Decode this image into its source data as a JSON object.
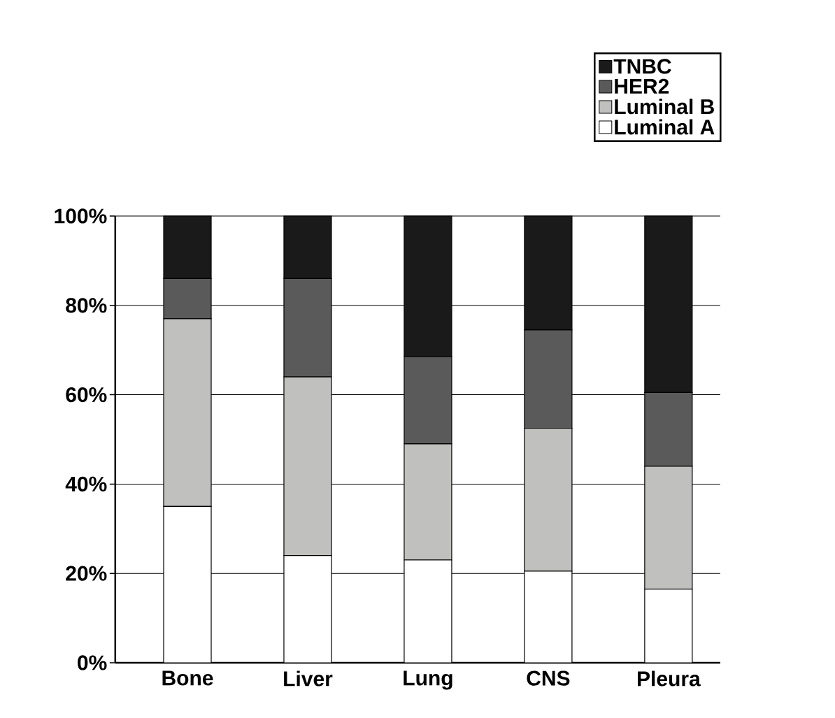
{
  "chart_data": {
    "type": "bar",
    "stacked": true,
    "categories": [
      "Bone",
      "Liver",
      "Lung",
      "CNS",
      "Pleura"
    ],
    "series": [
      {
        "name": "Luminal A",
        "color": "#ffffff",
        "values": [
          35,
          24,
          23,
          20.5,
          16.5
        ]
      },
      {
        "name": "Luminal B",
        "color": "#c0c1bf",
        "values": [
          42,
          40,
          26,
          32,
          27.5
        ]
      },
      {
        "name": "HER2",
        "color": "#5a5a5a",
        "values": [
          9,
          22,
          19.5,
          22,
          16.5
        ]
      },
      {
        "name": "TNBC",
        "color": "#1a1a1a",
        "values": [
          14,
          14,
          31.5,
          25.5,
          39.5
        ]
      }
    ],
    "ylim": [
      0,
      100
    ],
    "yticks": [
      {
        "value": 0,
        "label": "0%"
      },
      {
        "value": 20,
        "label": "20%"
      },
      {
        "value": 40,
        "label": "40%"
      },
      {
        "value": 60,
        "label": "60%"
      },
      {
        "value": 80,
        "label": "80%"
      },
      {
        "value": 100,
        "label": "100%"
      }
    ],
    "grid": "y",
    "legend": "top right"
  }
}
